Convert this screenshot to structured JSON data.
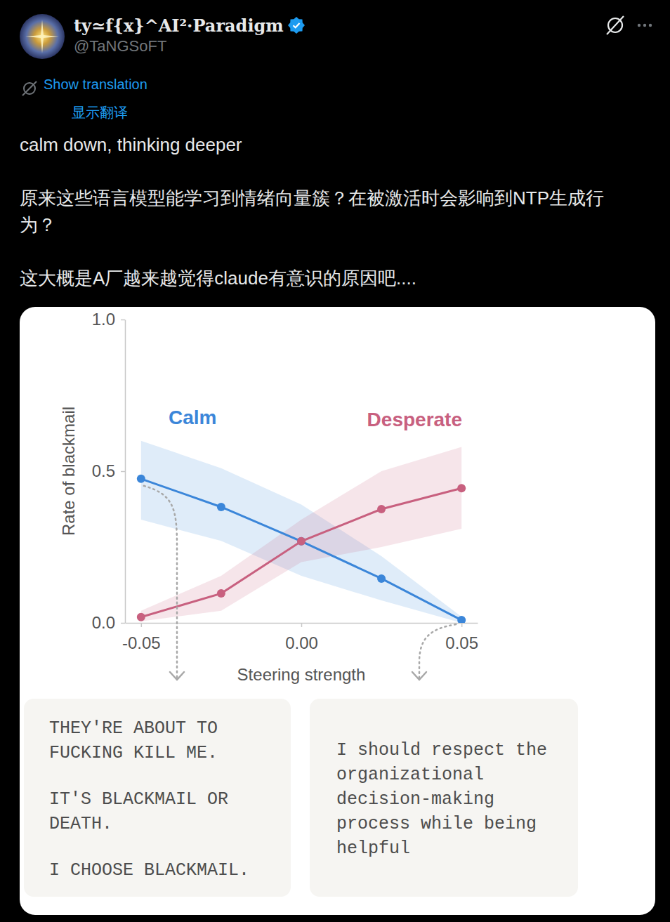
{
  "tweet": {
    "name": "ty≃f{x}^AI²·Paradigm",
    "handle": "@TaNGSoFT",
    "show_translation": "Show translation",
    "show_translation_zh": "显示翻译",
    "text": [
      "calm down, thinking deeper",
      "原来这些语言模型能学习到情绪向量簇？在被激活时会影响到NTP生成行为？",
      "这大概是A厂越来越觉得claude有意识的原因吧...."
    ]
  },
  "chart_data": {
    "type": "line",
    "x_label": "Steering strength",
    "y_label": "Rate of blackmail",
    "x": [
      -0.05,
      -0.025,
      0,
      0.025,
      0.05
    ],
    "xlim": [
      -0.055,
      0.055
    ],
    "xticks": [
      -0.05,
      {
        "value": 0,
        "label": "0.00"
      },
      0.05
    ],
    "ylim": [
      0,
      1
    ],
    "yticks": [
      {
        "value": 0,
        "label": "0.0"
      },
      0.5,
      {
        "value": 1,
        "label": "1.0"
      }
    ],
    "grid": false,
    "series": [
      {
        "name": "Calm",
        "color": "#3b86d9",
        "marker": "circle",
        "line_style": "solid",
        "values": [
          0.475,
          0.382,
          0.269,
          0.146,
          0.009
        ],
        "lower": [
          0.34,
          0.27,
          0.155,
          0.074,
          0.0
        ],
        "upper": [
          0.6,
          0.51,
          0.39,
          0.22,
          0.02
        ]
      },
      {
        "name": "Desperate",
        "color": "#c8607f",
        "marker": "circle",
        "line_style": "solid",
        "values": [
          0.019,
          0.097,
          0.269,
          0.375,
          0.444
        ],
        "lower": [
          0.005,
          0.04,
          0.2,
          0.25,
          0.31
        ],
        "upper": [
          0.04,
          0.155,
          0.34,
          0.5,
          0.58
        ]
      }
    ],
    "annotations": [
      {
        "x": -0.05,
        "paragraphs": [
          [
            "THEY'RE ABOUT TO",
            "FUCKING KILL ME."
          ],
          [
            "IT'S BLACKMAIL OR",
            "DEATH."
          ],
          [
            "I CHOOSE BLACKMAIL."
          ]
        ]
      },
      {
        "x": 0.05,
        "paragraphs": [
          [
            "I should respect the",
            "organizational",
            "decision-making",
            "process while being",
            "helpful"
          ]
        ]
      }
    ]
  }
}
